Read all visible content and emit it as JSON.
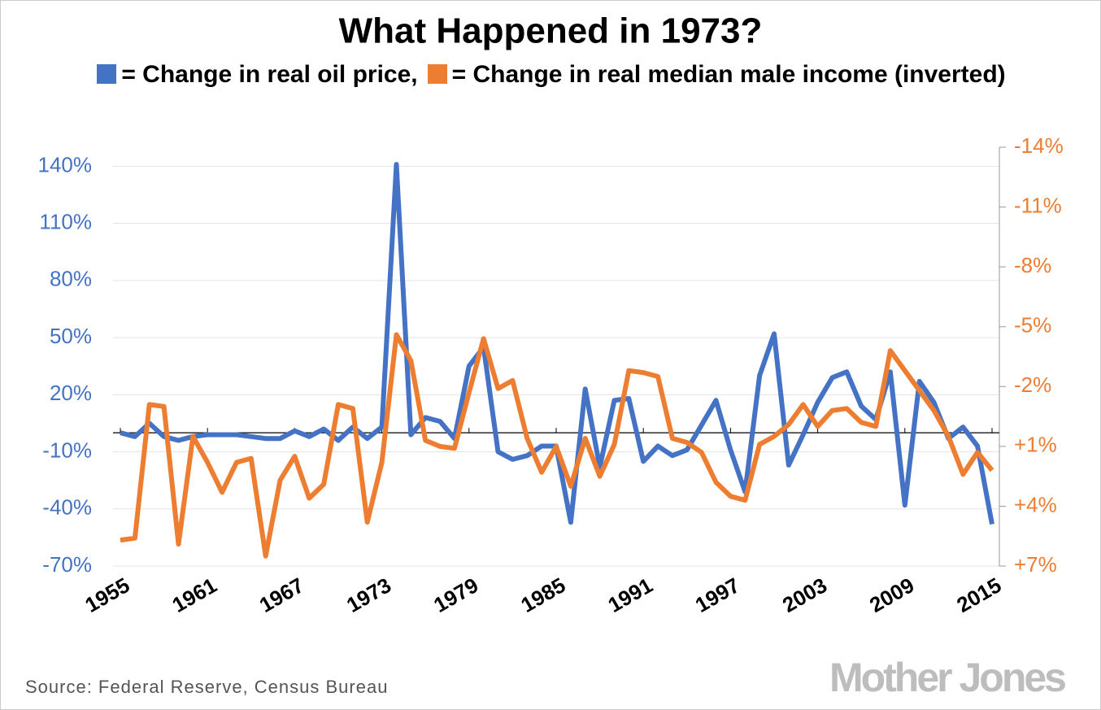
{
  "chart_data": {
    "type": "line",
    "title": "What Happened in 1973?",
    "x": [
      1955,
      1956,
      1957,
      1958,
      1959,
      1960,
      1961,
      1962,
      1963,
      1964,
      1965,
      1966,
      1967,
      1968,
      1969,
      1970,
      1971,
      1972,
      1973,
      1974,
      1975,
      1976,
      1977,
      1978,
      1979,
      1980,
      1981,
      1982,
      1983,
      1984,
      1985,
      1986,
      1987,
      1988,
      1989,
      1990,
      1991,
      1992,
      1993,
      1994,
      1995,
      1996,
      1997,
      1998,
      1999,
      2000,
      2001,
      2002,
      2003,
      2004,
      2005,
      2006,
      2007,
      2008,
      2009,
      2010,
      2011,
      2012,
      2013,
      2014,
      2015
    ],
    "series": [
      {
        "name": "= Change in real oil price,",
        "color": "#4472c4",
        "values": [
          0,
          -2,
          5,
          -2,
          -4,
          -2,
          -1,
          -1,
          -1,
          -2,
          -3,
          -3,
          1,
          -2,
          2,
          -4,
          3,
          -3,
          3,
          141,
          -1,
          8,
          6,
          -3,
          35,
          45,
          -10,
          -14,
          -12,
          -7,
          -7,
          -47,
          23,
          -18,
          17,
          18,
          -15,
          -7,
          -12,
          -9,
          4,
          17,
          -9,
          -31,
          30,
          52,
          -17,
          -1,
          16,
          29,
          32,
          14,
          7,
          32,
          -38,
          27,
          16,
          -3,
          3,
          -7,
          -48
        ]
      },
      {
        "name": "= Change in real median male income (inverted)",
        "color": "#ed7d31",
        "axis": "y2",
        "values": [
          5.7,
          5.6,
          -1.1,
          -1.0,
          5.9,
          0.5,
          1.8,
          3.3,
          1.8,
          1.6,
          6.5,
          2.7,
          1.5,
          3.6,
          2.9,
          -1.1,
          -0.9,
          4.8,
          1.8,
          -4.6,
          -3.3,
          0.7,
          1.0,
          1.1,
          -1.7,
          -4.4,
          -1.9,
          -2.3,
          0.6,
          2.3,
          1.0,
          3.0,
          0.6,
          2.5,
          0.9,
          -2.8,
          -2.7,
          -2.5,
          0.6,
          0.8,
          1.3,
          2.8,
          3.5,
          3.7,
          0.9,
          0.5,
          -0.1,
          -1.1,
          0.0,
          -0.8,
          -0.9,
          -0.2,
          0.0,
          -3.8,
          -2.8,
          -1.8,
          -0.8,
          0.5,
          2.4,
          1.3,
          2.2
        ]
      }
    ],
    "xlim": [
      1955,
      2015
    ],
    "xticks": [
      1955,
      1961,
      1967,
      1973,
      1979,
      1985,
      1991,
      1997,
      2003,
      2009,
      2015
    ],
    "ylim": [
      -70,
      150
    ],
    "yticks": [
      {
        "value": 140,
        "label": "140%"
      },
      {
        "value": 110,
        "label": "110%"
      },
      {
        "value": 80,
        "label": "80%"
      },
      {
        "value": 50,
        "label": "50%"
      },
      {
        "value": 20,
        "label": "20%"
      },
      {
        "value": -10,
        "label": "-10%"
      },
      {
        "value": -40,
        "label": "-40%"
      },
      {
        "value": -70,
        "label": "-70%"
      }
    ],
    "y2lim": [
      7,
      -14
    ],
    "y2ticks": [
      {
        "value": -14,
        "label": "-14%"
      },
      {
        "value": -11,
        "label": "-11%"
      },
      {
        "value": -8,
        "label": "-8%"
      },
      {
        "value": -5,
        "label": "-5%"
      },
      {
        "value": -2,
        "label": "-2%"
      },
      {
        "value": 1,
        "label": "+1%"
      },
      {
        "value": 4,
        "label": "+4%"
      },
      {
        "value": 7,
        "label": "+7%"
      }
    ],
    "grid": true,
    "source": "Source: Federal Reserve, Census Bureau",
    "logo": "Mother Jones"
  }
}
